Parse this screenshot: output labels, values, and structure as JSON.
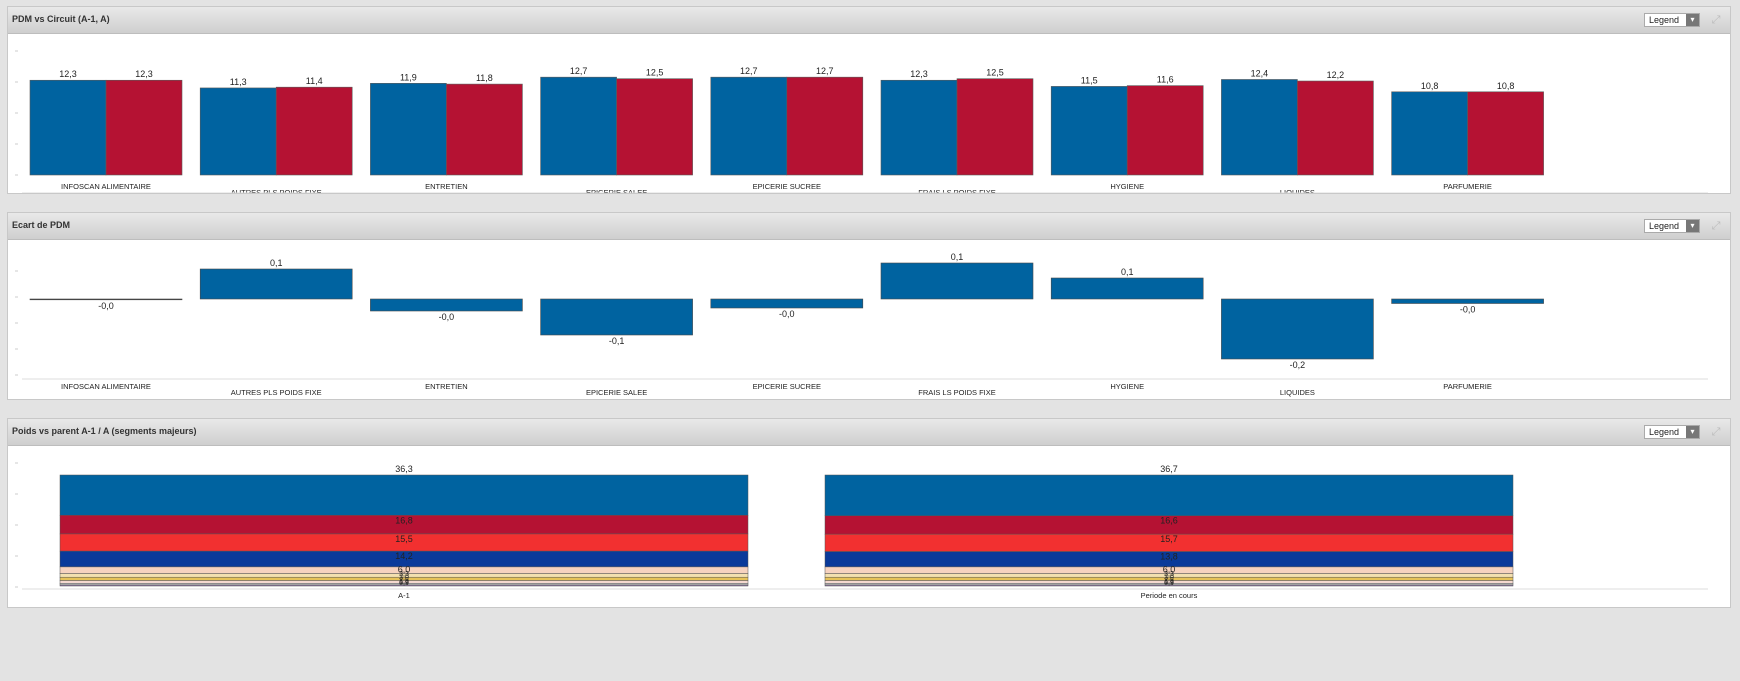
{
  "panels": [
    {
      "title": "PDM vs Circuit (A-1, A)",
      "legend_label": "Legend",
      "legend_caret": "▾",
      "expand_icon": "expand-icon"
    },
    {
      "title": "Ecart de PDM",
      "legend_label": "Legend",
      "legend_caret": "▾",
      "expand_icon": "expand-icon"
    },
    {
      "title": "Poids vs parent A-1 / A (segments majeurs)",
      "legend_label": "Legend",
      "legend_caret": "▾",
      "expand_icon": "expand-icon"
    }
  ],
  "chart_data": [
    {
      "type": "bar",
      "title": "PDM vs Circuit (A-1, A)",
      "categories": [
        "INFOSCAN ALIMENTAIRE",
        "AUTRES PLS POIDS FIXE",
        "ENTRETIEN",
        "EPICERIE SALEE",
        "EPICERIE SUCREE",
        "FRAIS LS POIDS FIXE",
        "HYGIENE",
        "LIQUIDES",
        "PARFUMERIE"
      ],
      "series": [
        {
          "values": [
            12.3,
            11.3,
            11.9,
            12.7,
            12.7,
            12.3,
            11.5,
            12.4,
            10.8
          ],
          "labels": [
            "12,3",
            "11,3",
            "11,9",
            "12,7",
            "12,7",
            "12,3",
            "11,5",
            "12,4",
            "10,8"
          ],
          "color": "#0063a0"
        },
        {
          "values": [
            12.3,
            11.4,
            11.8,
            12.5,
            12.7,
            12.5,
            11.6,
            12.2,
            10.8
          ],
          "labels": [
            "12,3",
            "11,4",
            "11,8",
            "12,5",
            "12,7",
            "12,5",
            "11,6",
            "12,2",
            "10,8"
          ],
          "color": "#b51233"
        }
      ],
      "ylim": [
        0,
        13.5
      ],
      "grid": false
    },
    {
      "type": "bar",
      "title": "Ecart de PDM",
      "categories": [
        "INFOSCAN ALIMENTAIRE",
        "AUTRES PLS POIDS FIXE",
        "ENTRETIEN",
        "EPICERIE SALEE",
        "EPICERIE SUCREE",
        "FRAIS LS POIDS FIXE",
        "HYGIENE",
        "LIQUIDES",
        "PARFUMERIE"
      ],
      "values": [
        -0.002,
        0.1,
        -0.04,
        -0.12,
        -0.03,
        0.12,
        0.07,
        -0.2,
        -0.015
      ],
      "labels": [
        "-0,0",
        "0,1",
        "-0,0",
        "-0,1",
        "-0,0",
        "0,1",
        "0,1",
        "-0,2",
        "-0,0"
      ],
      "color": "#0063a0",
      "ylim": [
        -0.25,
        0.15
      ],
      "grid": false
    },
    {
      "type": "bar",
      "stacked": true,
      "title": "Poids vs parent A-1 / A (segments majeurs)",
      "categories": [
        "A-1",
        "Periode en cours"
      ],
      "series": [
        {
          "values": [
            36.3,
            36.7
          ],
          "labels": [
            "36,3",
            "36,7"
          ],
          "color": "#0063a0"
        },
        {
          "values": [
            16.8,
            16.6
          ],
          "labels": [
            "16,8",
            "16,6"
          ],
          "color": "#b51233"
        },
        {
          "values": [
            15.5,
            15.7
          ],
          "labels": [
            "15,5",
            "15,7"
          ],
          "color": "#f23030"
        },
        {
          "values": [
            14.2,
            13.8
          ],
          "labels": [
            "14,2",
            "13,8"
          ],
          "color": "#0a3a9a"
        },
        {
          "values": [
            6.0,
            6.0
          ],
          "labels": [
            "6,0",
            "6,0"
          ],
          "color": "#f6d2bf"
        },
        {
          "values": [
            3.3,
            3.3
          ],
          "labels": [
            "3,3",
            "3,3"
          ],
          "color": "#f3e0b0"
        },
        {
          "values": [
            3.0,
            3.0
          ],
          "labels": [
            "3,0",
            "3,0"
          ],
          "color": "#e7c35a"
        },
        {
          "values": [
            2.5,
            2.5
          ],
          "labels": [
            "2,5",
            "2,5"
          ],
          "color": "#f5d9d0"
        },
        {
          "values": [
            1.5,
            1.5
          ],
          "labels": [
            "1,5",
            "1,5"
          ],
          "color": "#cfcfcf"
        },
        {
          "values": [
            0.9,
            0.9
          ],
          "labels": [
            "0,9",
            "0,9"
          ],
          "color": "#9b7fb3"
        }
      ],
      "grid": false
    }
  ]
}
